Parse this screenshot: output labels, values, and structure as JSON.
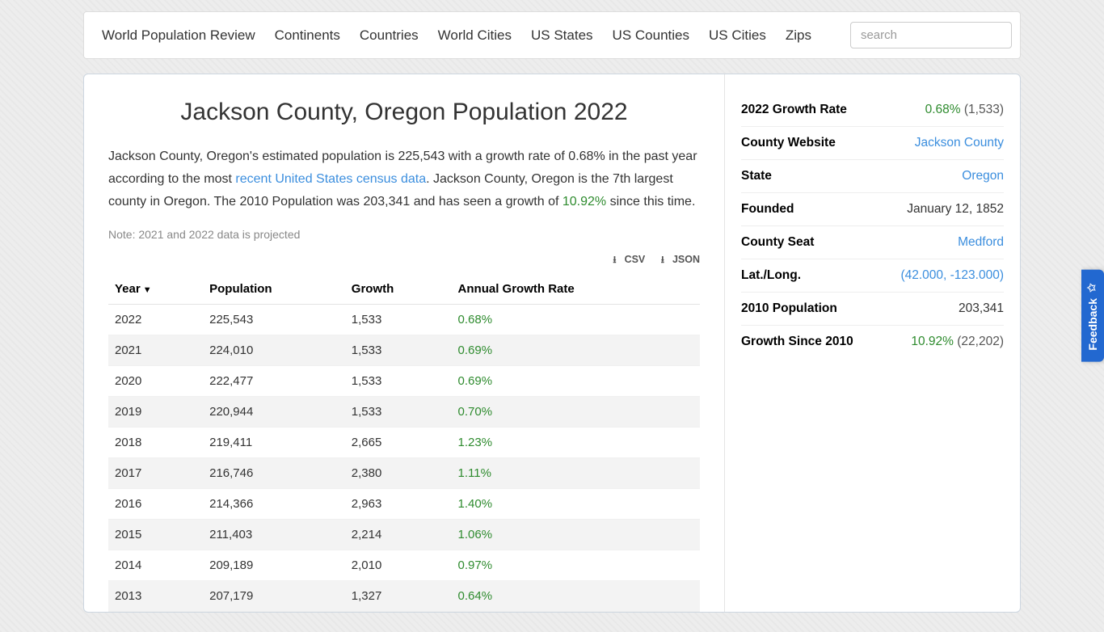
{
  "nav": {
    "items": [
      "World Population Review",
      "Continents",
      "Countries",
      "World Cities",
      "US States",
      "US Counties",
      "US Cities",
      "Zips"
    ],
    "search_placeholder": "search"
  },
  "page": {
    "title": "Jackson County, Oregon Population 2022",
    "intro_pre": "Jackson County, Oregon's estimated population is 225,543 with a growth rate of 0.68% in the past year according to the most ",
    "intro_link": "recent United States census data",
    "intro_mid": ". Jackson County, Oregon is the 7th largest county in Oregon. The 2010 Population was 203,341 and has seen a growth of ",
    "intro_growth": "10.92%",
    "intro_post": " since this time.",
    "note": "Note: 2021 and 2022 data is projected"
  },
  "downloads": {
    "csv": "CSV",
    "json": "JSON"
  },
  "table": {
    "columns": [
      "Year",
      "Population",
      "Growth",
      "Annual Growth Rate"
    ],
    "rows": [
      {
        "year": "2022",
        "population": "225,543",
        "growth": "1,533",
        "rate": "0.68%"
      },
      {
        "year": "2021",
        "population": "224,010",
        "growth": "1,533",
        "rate": "0.69%"
      },
      {
        "year": "2020",
        "population": "222,477",
        "growth": "1,533",
        "rate": "0.69%"
      },
      {
        "year": "2019",
        "population": "220,944",
        "growth": "1,533",
        "rate": "0.70%"
      },
      {
        "year": "2018",
        "population": "219,411",
        "growth": "2,665",
        "rate": "1.23%"
      },
      {
        "year": "2017",
        "population": "216,746",
        "growth": "2,380",
        "rate": "1.11%"
      },
      {
        "year": "2016",
        "population": "214,366",
        "growth": "2,963",
        "rate": "1.40%"
      },
      {
        "year": "2015",
        "population": "211,403",
        "growth": "2,214",
        "rate": "1.06%"
      },
      {
        "year": "2014",
        "population": "209,189",
        "growth": "2,010",
        "rate": "0.97%"
      },
      {
        "year": "2013",
        "population": "207,179",
        "growth": "1,327",
        "rate": "0.64%"
      }
    ]
  },
  "sidebar": {
    "growth_rate": {
      "label": "2022 Growth Rate",
      "value": "0.68%",
      "extra": "(1,533)"
    },
    "website": {
      "label": "County Website",
      "value": "Jackson County"
    },
    "state": {
      "label": "State",
      "value": "Oregon"
    },
    "founded": {
      "label": "Founded",
      "value": "January 12, 1852"
    },
    "seat": {
      "label": "County Seat",
      "value": "Medford"
    },
    "latlong": {
      "label": "Lat./Long.",
      "value": "(42.000, -123.000)"
    },
    "pop2010": {
      "label": "2010 Population",
      "value": "203,341"
    },
    "growth2010": {
      "label": "Growth Since 2010",
      "value": "10.92%",
      "extra": "(22,202)"
    }
  },
  "feedback": {
    "label": "Feedback"
  }
}
